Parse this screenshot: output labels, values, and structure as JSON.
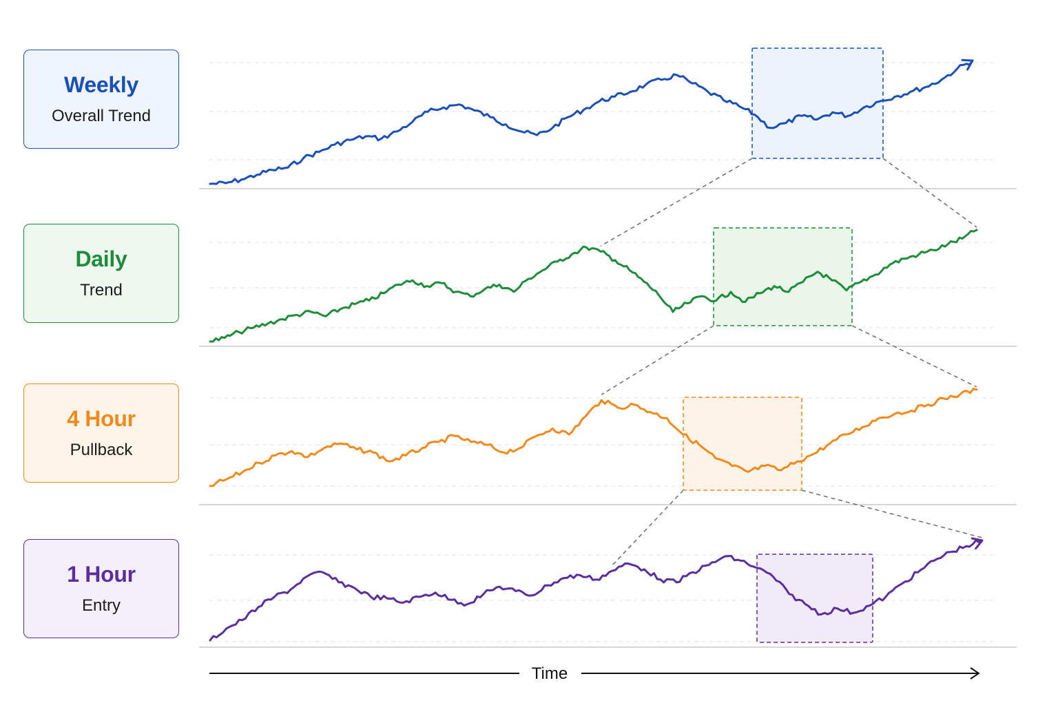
{
  "chart_data": {
    "type": "line",
    "x_axis_label": "Time",
    "legend": "left",
    "grid": true,
    "panels": [
      {
        "title": "Weekly",
        "subtitle": "Overall Trend",
        "color": "#1a4fb8",
        "fill": "#e9f1fd",
        "bg": "#eef5fe",
        "values": [
          5,
          6,
          12,
          20,
          28,
          32,
          48,
          58,
          70,
          78,
          84,
          80,
          92,
          108,
          125,
          132,
          137,
          127,
          116,
          104,
          92,
          86,
          98,
          116,
          128,
          142,
          150,
          158,
          170,
          178,
          186,
          172,
          158,
          144,
          134,
          120,
          98,
          106,
          118,
          112,
          124,
          118,
          132,
          142,
          150,
          158,
          166,
          178,
          196,
          210
        ]
      },
      {
        "title": "Daily",
        "subtitle": "Trend",
        "color": "#1e8c3a",
        "fill": "#e7f4e6",
        "bg": "#eef8ee",
        "values": [
          3,
          8,
          16,
          22,
          28,
          34,
          40,
          44,
          38,
          48,
          55,
          60,
          70,
          82,
          88,
          80,
          84,
          72,
          66,
          76,
          82,
          72,
          90,
          102,
          114,
          124,
          134,
          128,
          116,
          102,
          86,
          68,
          44,
          56,
          66,
          60,
          72,
          58,
          70,
          80,
          72,
          86,
          100,
          88,
          74,
          86,
          96,
          110,
          118,
          124,
          130,
          138,
          146,
          158
        ]
      },
      {
        "title": "4 Hour",
        "subtitle": "Pullback",
        "color": "#f08a1c",
        "fill": "#fdf1e4",
        "bg": "#fff4e8",
        "values": [
          3,
          12,
          22,
          34,
          44,
          50,
          42,
          54,
          60,
          52,
          48,
          36,
          44,
          54,
          62,
          70,
          62,
          58,
          48,
          54,
          70,
          80,
          72,
          96,
          118,
          108,
          112,
          102,
          94,
          72,
          58,
          40,
          30,
          22,
          30,
          24,
          36,
          46,
          60,
          72,
          82,
          94,
          100,
          104,
          112,
          120,
          126,
          132
        ]
      },
      {
        "title": "1 Hour",
        "subtitle": "Entry",
        "color": "#5b2d9e",
        "fill": "#efe7f8",
        "bg": "#f4effb",
        "values": [
          2,
          18,
          30,
          48,
          62,
          72,
          90,
          96,
          82,
          74,
          62,
          60,
          54,
          62,
          68,
          58,
          52,
          66,
          76,
          70,
          64,
          78,
          88,
          92,
          86,
          98,
          108,
          100,
          86,
          82,
          96,
          106,
          118,
          112,
          102,
          90,
          66,
          52,
          38,
          46,
          40,
          50,
          62,
          80,
          96,
          112,
          124,
          132,
          140
        ]
      }
    ]
  }
}
